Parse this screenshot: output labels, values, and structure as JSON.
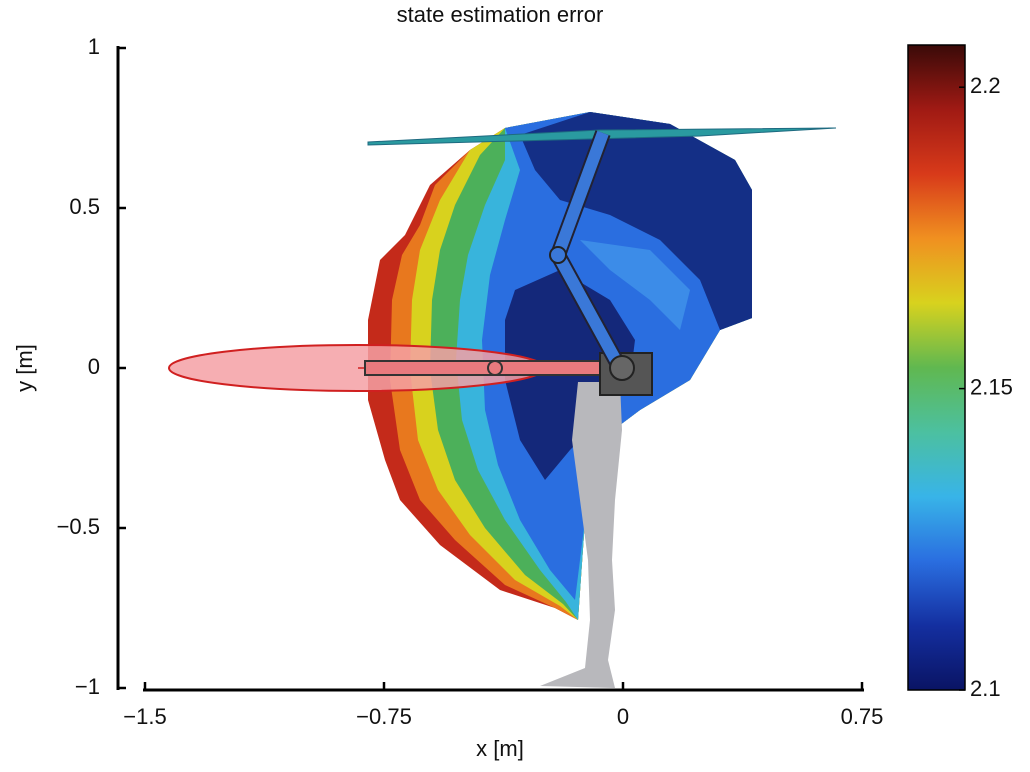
{
  "chart_data": {
    "type": "contour",
    "title": "state estimation error",
    "xlabel": "x [m]",
    "ylabel": "y [m]",
    "xlim": [
      -1.5,
      0.75
    ],
    "ylim": [
      -1,
      1
    ],
    "xticks": [
      {
        "value": -1.5,
        "label": "−1.5"
      },
      {
        "value": -0.75,
        "label": "−0.75"
      },
      0,
      0.75
    ],
    "yticks": [
      {
        "value": -1,
        "label": "−1"
      },
      {
        "value": -0.5,
        "label": "−0.5"
      },
      0,
      0.5,
      1
    ],
    "colorbar": {
      "clim": [
        2.1,
        2.207
      ],
      "ticks": [
        2.1,
        2.15,
        2.2
      ],
      "colormap": "jet"
    }
  }
}
